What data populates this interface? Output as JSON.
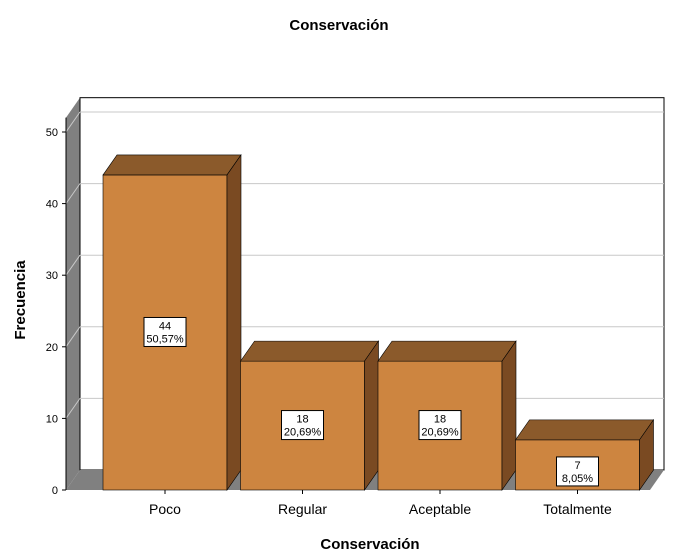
{
  "chart_data": {
    "type": "bar",
    "title": "Conservación",
    "xlabel": "Conservación",
    "ylabel": "Frecuencia",
    "categories": [
      "Poco",
      "Regular",
      "Aceptable",
      "Totalmente"
    ],
    "values": [
      44,
      18,
      18,
      7
    ],
    "percent_labels": [
      "50,57%",
      "20,69%",
      "20,69%",
      "8,05%"
    ],
    "ylim": [
      0,
      52
    ],
    "yticks": [
      0,
      10,
      20,
      30,
      40,
      50
    ],
    "grid": true,
    "three_d": true,
    "colors": {
      "bar_front": "#cd8540",
      "bar_top": "#8b5a2b",
      "bar_side": "#7a4a22",
      "wall": "#808080",
      "gridline": "#c8c8c8"
    }
  }
}
